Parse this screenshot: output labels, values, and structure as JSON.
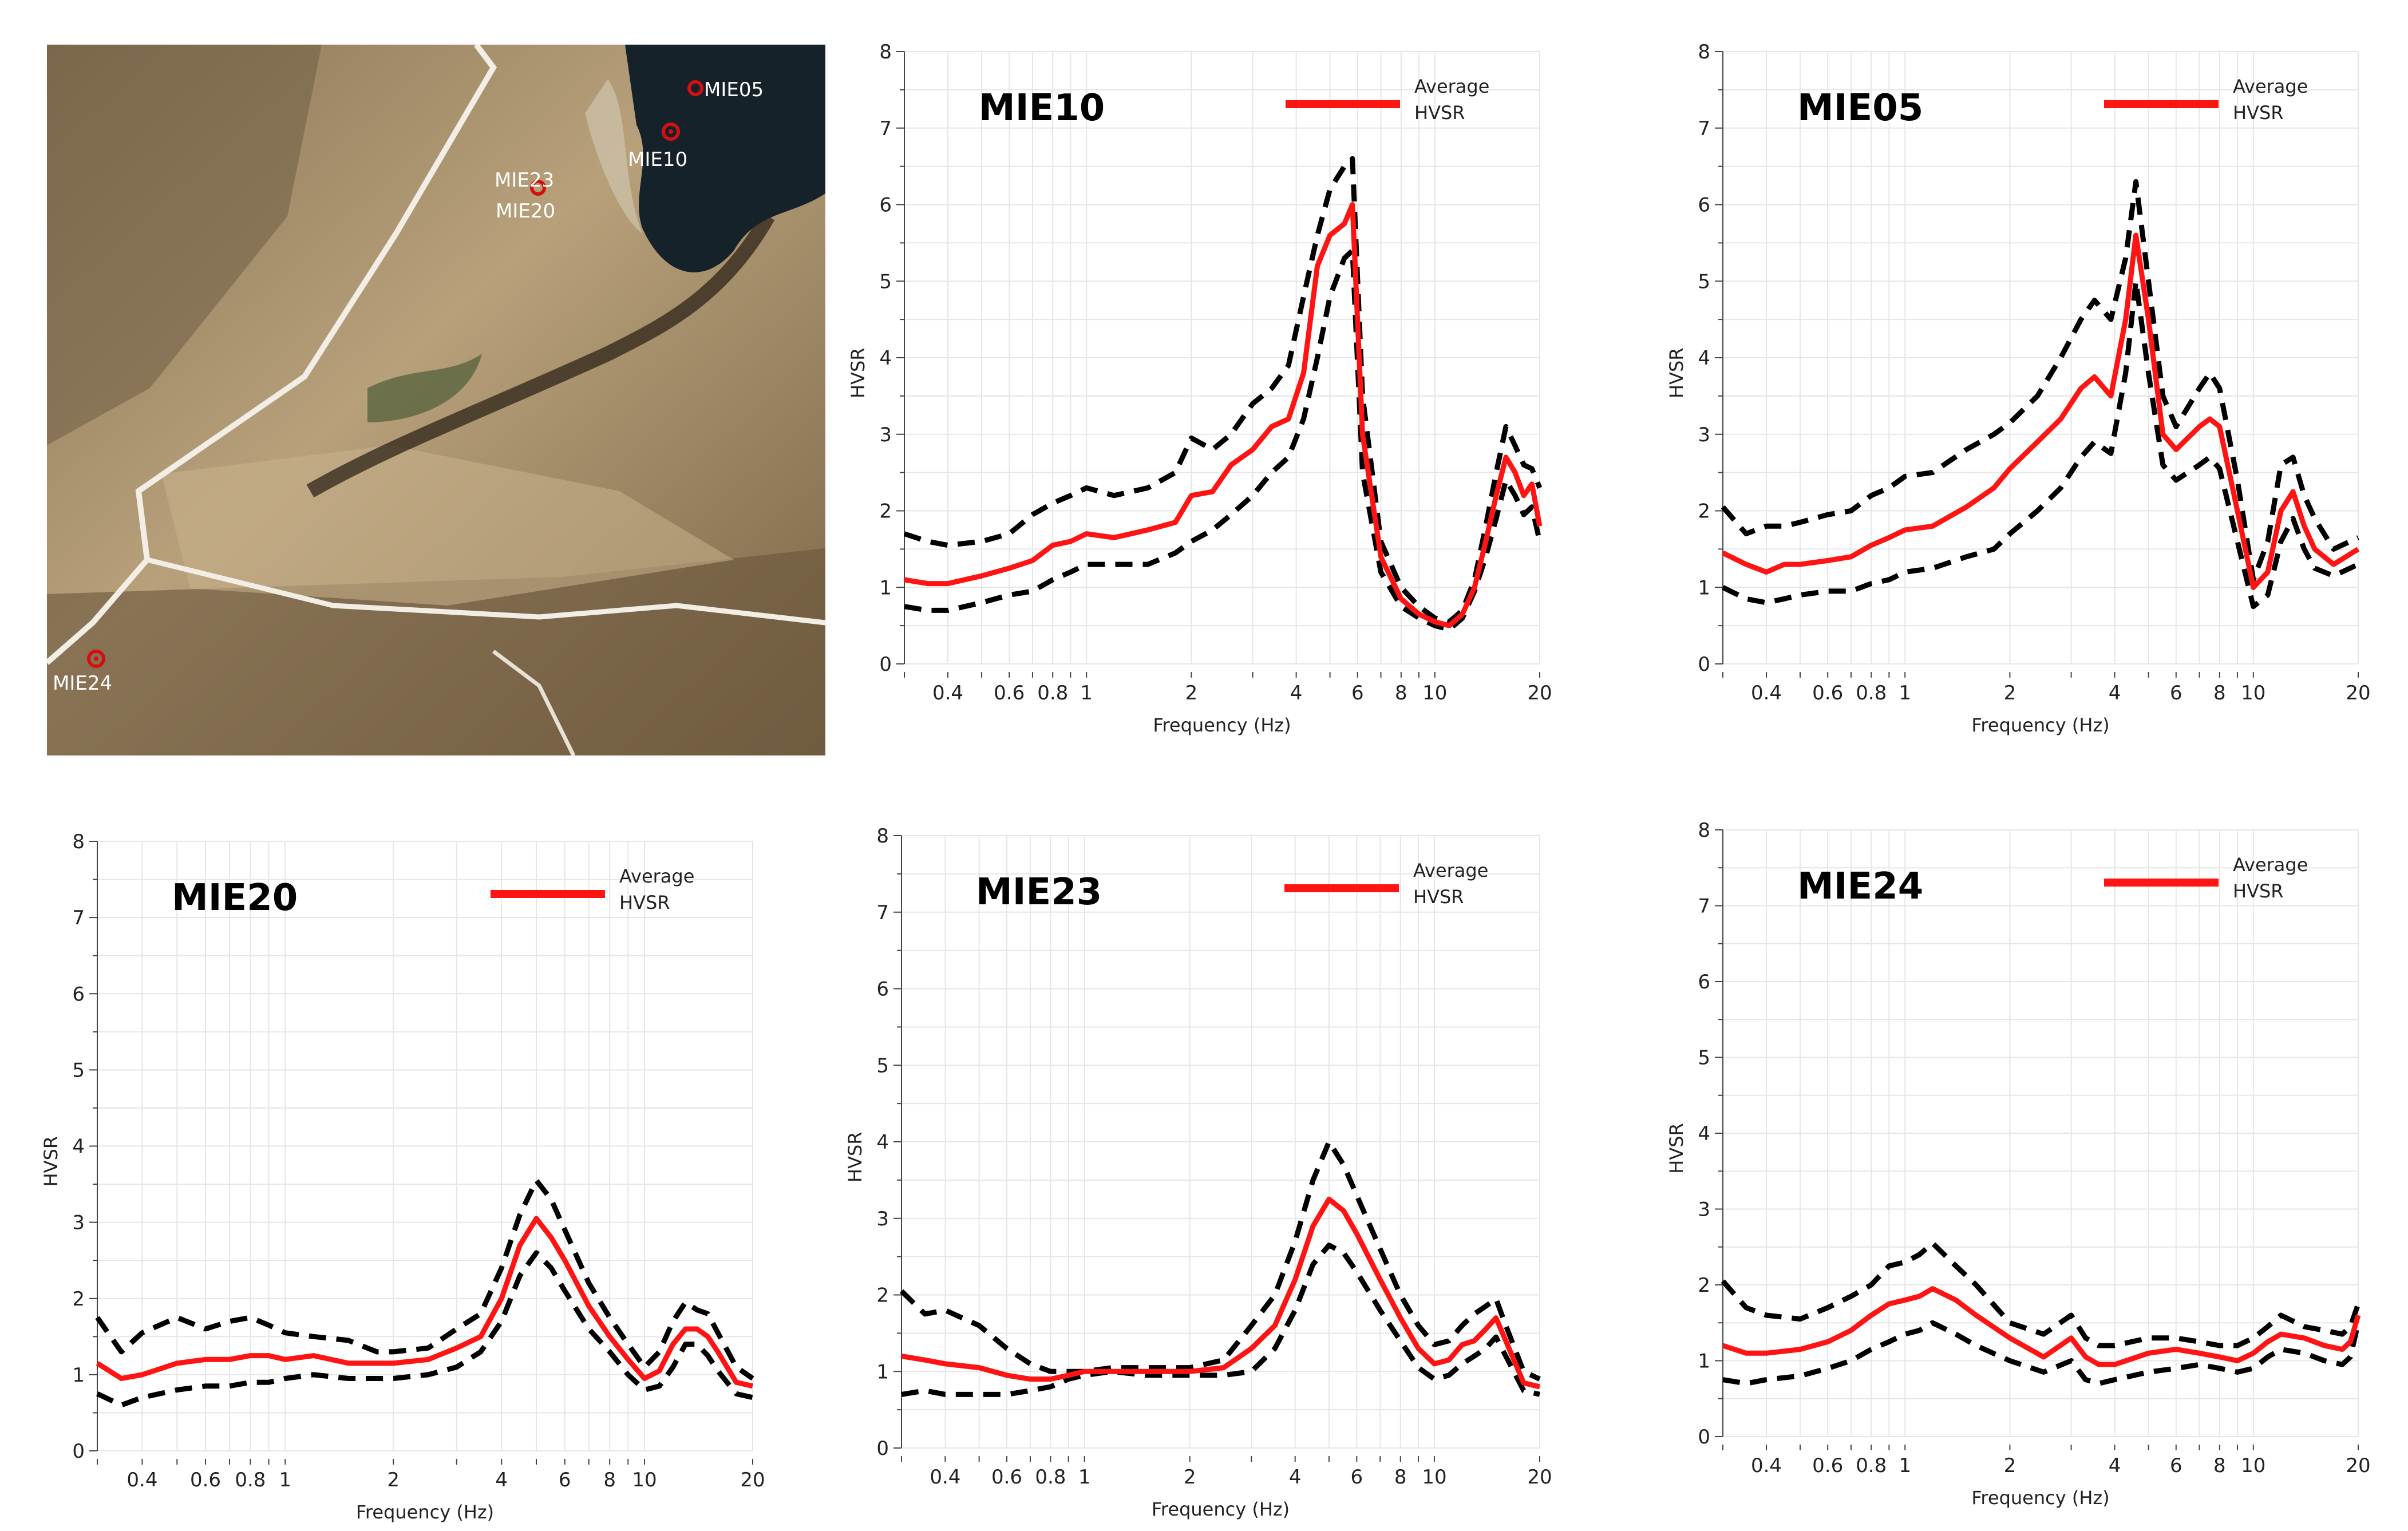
{
  "map": {
    "site_labels": [
      "MIE05",
      "MIE10",
      "MIE23",
      "MIE20",
      "MIE24"
    ]
  },
  "colors": {
    "average": "#ff1414",
    "bounds": "#000000",
    "grid": "#e6e6e6",
    "axis": "#444444"
  },
  "legend": {
    "line1": "Average",
    "line2": "HVSR"
  },
  "chart_data": [
    {
      "type": "line",
      "title": "MIE10",
      "xlabel": "Frequency (Hz)",
      "ylabel": "HVSR",
      "xscale": "log",
      "xlim": [
        0.3,
        20
      ],
      "ylim": [
        0,
        8
      ],
      "xticks": [
        0.4,
        0.6,
        0.8,
        1,
        2,
        4,
        6,
        8,
        10,
        20
      ],
      "xtick_labels": [
        "0.4",
        "0.6",
        "0.8",
        "1",
        "2",
        "4",
        "6",
        "8",
        "10",
        "20"
      ],
      "yticks": [
        0,
        1,
        2,
        3,
        4,
        5,
        6,
        7,
        8
      ],
      "x": [
        0.3,
        0.35,
        0.4,
        0.5,
        0.6,
        0.7,
        0.8,
        0.9,
        1,
        1.2,
        1.5,
        1.8,
        2,
        2.3,
        2.6,
        3,
        3.4,
        3.8,
        4.2,
        4.6,
        5,
        5.5,
        5.8,
        6.2,
        7,
        8,
        9,
        10,
        11,
        12,
        13,
        14,
        15,
        16,
        17,
        18,
        19,
        20
      ],
      "series": [
        {
          "name": "Average HVSR",
          "values": [
            1.1,
            1.05,
            1.05,
            1.15,
            1.25,
            1.35,
            1.55,
            1.6,
            1.7,
            1.65,
            1.75,
            1.85,
            2.2,
            2.25,
            2.6,
            2.8,
            3.1,
            3.2,
            3.8,
            5.2,
            5.6,
            5.75,
            6.0,
            3.0,
            1.4,
            0.85,
            0.65,
            0.55,
            0.5,
            0.65,
            1.0,
            1.6,
            2.2,
            2.7,
            2.5,
            2.2,
            2.35,
            1.8
          ]
        },
        {
          "name": "Upper bound",
          "values": [
            1.7,
            1.6,
            1.55,
            1.6,
            1.7,
            1.95,
            2.1,
            2.2,
            2.3,
            2.2,
            2.3,
            2.5,
            2.95,
            2.8,
            3.0,
            3.4,
            3.6,
            3.9,
            4.8,
            5.6,
            6.2,
            6.5,
            6.6,
            3.5,
            1.6,
            1.0,
            0.75,
            0.6,
            0.55,
            0.7,
            1.1,
            1.8,
            2.5,
            3.1,
            2.85,
            2.6,
            2.55,
            2.3
          ]
        },
        {
          "name": "Lower bound",
          "values": [
            0.75,
            0.7,
            0.7,
            0.8,
            0.9,
            0.95,
            1.1,
            1.2,
            1.3,
            1.3,
            1.3,
            1.45,
            1.6,
            1.75,
            1.95,
            2.2,
            2.5,
            2.7,
            3.2,
            4.0,
            4.8,
            5.3,
            5.4,
            2.5,
            1.2,
            0.75,
            0.6,
            0.5,
            0.45,
            0.6,
            0.95,
            1.4,
            1.9,
            2.4,
            2.2,
            1.95,
            2.05,
            1.6
          ]
        }
      ]
    },
    {
      "type": "line",
      "title": "MIE05",
      "xlabel": "Frequency (Hz)",
      "ylabel": "HVSR",
      "xscale": "log",
      "xlim": [
        0.3,
        20
      ],
      "ylim": [
        0,
        8
      ],
      "xticks": [
        0.4,
        0.6,
        0.8,
        1,
        2,
        4,
        6,
        8,
        10,
        20
      ],
      "xtick_labels": [
        "0.4",
        "0.6",
        "0.8",
        "1",
        "2",
        "4",
        "6",
        "8",
        "10",
        "20"
      ],
      "yticks": [
        0,
        1,
        2,
        3,
        4,
        5,
        6,
        7,
        8
      ],
      "x": [
        0.3,
        0.35,
        0.4,
        0.45,
        0.5,
        0.6,
        0.7,
        0.8,
        0.9,
        1,
        1.2,
        1.5,
        1.8,
        2,
        2.4,
        2.8,
        3.2,
        3.5,
        3.9,
        4.3,
        4.6,
        5,
        5.5,
        6,
        7,
        7.5,
        8,
        9,
        10,
        11,
        12,
        13,
        14,
        15,
        17,
        20
      ],
      "series": [
        {
          "name": "Average HVSR",
          "values": [
            1.45,
            1.3,
            1.2,
            1.3,
            1.3,
            1.35,
            1.4,
            1.55,
            1.65,
            1.75,
            1.8,
            2.05,
            2.3,
            2.55,
            2.9,
            3.2,
            3.6,
            3.75,
            3.5,
            4.5,
            5.6,
            4.5,
            3.0,
            2.8,
            3.1,
            3.2,
            3.1,
            2.0,
            1.0,
            1.2,
            2.0,
            2.25,
            1.8,
            1.5,
            1.3,
            1.5
          ]
        },
        {
          "name": "Upper bound",
          "values": [
            2.05,
            1.7,
            1.8,
            1.8,
            1.85,
            1.95,
            2.0,
            2.2,
            2.3,
            2.45,
            2.5,
            2.8,
            3.0,
            3.15,
            3.5,
            4.0,
            4.5,
            4.75,
            4.5,
            5.3,
            6.3,
            5.0,
            3.5,
            3.1,
            3.6,
            3.8,
            3.6,
            2.4,
            1.1,
            1.6,
            2.6,
            2.7,
            2.2,
            1.9,
            1.5,
            1.65
          ]
        },
        {
          "name": "Lower bound",
          "values": [
            1.0,
            0.85,
            0.8,
            0.85,
            0.9,
            0.95,
            0.95,
            1.05,
            1.1,
            1.2,
            1.25,
            1.4,
            1.5,
            1.7,
            2.0,
            2.3,
            2.7,
            2.9,
            2.75,
            3.8,
            5.0,
            3.8,
            2.6,
            2.4,
            2.6,
            2.7,
            2.55,
            1.6,
            0.75,
            0.9,
            1.6,
            1.9,
            1.5,
            1.25,
            1.15,
            1.3
          ]
        }
      ]
    },
    {
      "type": "line",
      "title": "MIE20",
      "xlabel": "Frequency (Hz)",
      "ylabel": "HVSR",
      "xscale": "log",
      "xlim": [
        0.3,
        20
      ],
      "ylim": [
        0,
        8
      ],
      "xticks": [
        0.4,
        0.6,
        0.8,
        1,
        2,
        4,
        6,
        8,
        10,
        20
      ],
      "xtick_labels": [
        "0.4",
        "0.6",
        "0.8",
        "1",
        "2",
        "4",
        "6",
        "8",
        "10",
        "20"
      ],
      "yticks": [
        0,
        1,
        2,
        3,
        4,
        5,
        6,
        7,
        8
      ],
      "x": [
        0.3,
        0.35,
        0.4,
        0.5,
        0.6,
        0.7,
        0.8,
        0.9,
        1,
        1.2,
        1.5,
        1.8,
        2,
        2.5,
        3,
        3.5,
        4,
        4.5,
        5,
        5.5,
        6,
        7,
        8,
        9,
        10,
        11,
        12,
        13,
        14,
        15,
        16,
        18,
        20
      ],
      "series": [
        {
          "name": "Average HVSR",
          "values": [
            1.15,
            0.95,
            1.0,
            1.15,
            1.2,
            1.2,
            1.25,
            1.25,
            1.2,
            1.25,
            1.15,
            1.15,
            1.15,
            1.2,
            1.35,
            1.5,
            2.0,
            2.7,
            3.05,
            2.8,
            2.5,
            1.9,
            1.5,
            1.2,
            0.95,
            1.05,
            1.4,
            1.6,
            1.6,
            1.5,
            1.3,
            0.9,
            0.85
          ]
        },
        {
          "name": "Upper bound",
          "values": [
            1.75,
            1.3,
            1.55,
            1.75,
            1.6,
            1.7,
            1.75,
            1.65,
            1.55,
            1.5,
            1.45,
            1.3,
            1.3,
            1.35,
            1.6,
            1.8,
            2.4,
            3.1,
            3.55,
            3.3,
            2.9,
            2.2,
            1.75,
            1.4,
            1.1,
            1.3,
            1.7,
            1.95,
            1.85,
            1.8,
            1.55,
            1.1,
            0.95
          ]
        },
        {
          "name": "Lower bound",
          "values": [
            0.75,
            0.6,
            0.7,
            0.8,
            0.85,
            0.85,
            0.9,
            0.9,
            0.95,
            1.0,
            0.95,
            0.95,
            0.95,
            1.0,
            1.1,
            1.3,
            1.7,
            2.3,
            2.6,
            2.4,
            2.1,
            1.6,
            1.3,
            1.0,
            0.8,
            0.85,
            1.1,
            1.4,
            1.4,
            1.25,
            1.05,
            0.75,
            0.7
          ]
        }
      ]
    },
    {
      "type": "line",
      "title": "MIE23",
      "xlabel": "Frequency (Hz)",
      "ylabel": "HVSR",
      "xscale": "log",
      "xlim": [
        0.3,
        20
      ],
      "ylim": [
        0,
        8
      ],
      "xticks": [
        0.4,
        0.6,
        0.8,
        1,
        2,
        4,
        6,
        8,
        10,
        20
      ],
      "xtick_labels": [
        "0.4",
        "0.6",
        "0.8",
        "1",
        "2",
        "4",
        "6",
        "8",
        "10",
        "20"
      ],
      "yticks": [
        0,
        1,
        2,
        3,
        4,
        5,
        6,
        7,
        8
      ],
      "x": [
        0.3,
        0.35,
        0.4,
        0.5,
        0.6,
        0.7,
        0.8,
        0.9,
        1,
        1.2,
        1.5,
        1.8,
        2,
        2.5,
        3,
        3.5,
        4,
        4.5,
        5,
        5.5,
        6,
        7,
        8,
        9,
        10,
        11,
        12,
        13,
        14,
        15,
        16,
        18,
        20
      ],
      "series": [
        {
          "name": "Average HVSR",
          "values": [
            1.2,
            1.15,
            1.1,
            1.05,
            0.95,
            0.9,
            0.9,
            0.95,
            1.0,
            1.0,
            1.0,
            1.0,
            1.0,
            1.05,
            1.3,
            1.6,
            2.2,
            2.9,
            3.25,
            3.1,
            2.8,
            2.2,
            1.7,
            1.3,
            1.1,
            1.15,
            1.35,
            1.4,
            1.55,
            1.7,
            1.4,
            0.85,
            0.8
          ]
        },
        {
          "name": "Upper bound",
          "values": [
            2.05,
            1.75,
            1.8,
            1.6,
            1.3,
            1.1,
            1.0,
            1.0,
            1.0,
            1.05,
            1.05,
            1.05,
            1.05,
            1.15,
            1.6,
            2.0,
            2.7,
            3.5,
            4.0,
            3.7,
            3.3,
            2.6,
            2.0,
            1.6,
            1.35,
            1.4,
            1.6,
            1.75,
            1.85,
            1.95,
            1.6,
            1.0,
            0.9
          ]
        },
        {
          "name": "Lower bound",
          "values": [
            0.7,
            0.75,
            0.7,
            0.7,
            0.7,
            0.75,
            0.8,
            0.9,
            0.95,
            1.0,
            0.95,
            0.95,
            0.95,
            0.95,
            1.0,
            1.3,
            1.8,
            2.4,
            2.65,
            2.55,
            2.3,
            1.8,
            1.4,
            1.05,
            0.9,
            0.95,
            1.1,
            1.2,
            1.3,
            1.45,
            1.2,
            0.75,
            0.7
          ]
        }
      ]
    },
    {
      "type": "line",
      "title": "MIE24",
      "xlabel": "Frequency (Hz)",
      "ylabel": "HVSR",
      "xscale": "log",
      "xlim": [
        0.3,
        20
      ],
      "ylim": [
        0,
        8
      ],
      "xticks": [
        0.4,
        0.6,
        0.8,
        1,
        2,
        4,
        6,
        8,
        10,
        20
      ],
      "xtick_labels": [
        "0.4",
        "0.6",
        "0.8",
        "1",
        "2",
        "4",
        "6",
        "8",
        "10",
        "20"
      ],
      "yticks": [
        0,
        1,
        2,
        3,
        4,
        5,
        6,
        7,
        8
      ],
      "x": [
        0.3,
        0.35,
        0.4,
        0.5,
        0.6,
        0.7,
        0.8,
        0.9,
        1,
        1.1,
        1.2,
        1.4,
        1.6,
        2,
        2.5,
        3,
        3.3,
        3.6,
        4,
        5,
        6,
        7,
        8,
        9,
        10,
        11,
        12,
        14,
        16,
        18,
        19,
        20
      ],
      "series": [
        {
          "name": "Average HVSR",
          "values": [
            1.2,
            1.1,
            1.1,
            1.15,
            1.25,
            1.4,
            1.6,
            1.75,
            1.8,
            1.85,
            1.95,
            1.8,
            1.6,
            1.3,
            1.05,
            1.3,
            1.05,
            0.95,
            0.95,
            1.1,
            1.15,
            1.1,
            1.05,
            1.0,
            1.1,
            1.25,
            1.35,
            1.3,
            1.2,
            1.15,
            1.25,
            1.6
          ]
        },
        {
          "name": "Upper bound",
          "values": [
            2.05,
            1.7,
            1.6,
            1.55,
            1.7,
            1.85,
            2.0,
            2.25,
            2.3,
            2.4,
            2.55,
            2.25,
            2.0,
            1.5,
            1.35,
            1.6,
            1.3,
            1.2,
            1.2,
            1.3,
            1.3,
            1.25,
            1.2,
            1.2,
            1.3,
            1.45,
            1.6,
            1.45,
            1.4,
            1.35,
            1.45,
            1.75
          ]
        },
        {
          "name": "Lower bound",
          "values": [
            0.75,
            0.7,
            0.75,
            0.8,
            0.9,
            1.0,
            1.15,
            1.25,
            1.35,
            1.4,
            1.5,
            1.35,
            1.2,
            1.0,
            0.85,
            1.0,
            0.75,
            0.7,
            0.75,
            0.85,
            0.9,
            0.95,
            0.9,
            0.85,
            0.9,
            1.05,
            1.15,
            1.1,
            1.0,
            0.95,
            1.05,
            1.5
          ]
        }
      ]
    }
  ]
}
